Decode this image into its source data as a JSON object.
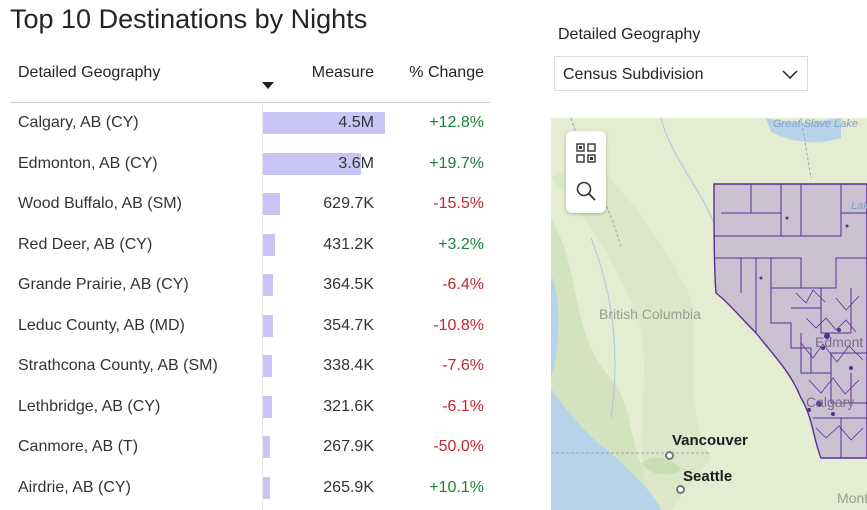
{
  "report": {
    "title": "Top 10 Destinations by Nights"
  },
  "table": {
    "headers": {
      "geography": "Detailed Geography",
      "measure": "Measure",
      "change": "% Change"
    },
    "sort_icon": "sort-descending-icon",
    "rows": [
      {
        "geography": "Calgary, AB (CY)",
        "measure": "4.5M",
        "change": "+12.8%",
        "bar_value": 4.5,
        "direction": "pos"
      },
      {
        "geography": "Edmonton, AB (CY)",
        "measure": "3.6M",
        "change": "+19.7%",
        "bar_value": 3.6,
        "direction": "pos"
      },
      {
        "geography": "Wood Buffalo, AB (SM)",
        "measure": "629.7K",
        "change": "-15.5%",
        "bar_value": 0.6297,
        "direction": "neg"
      },
      {
        "geography": "Red Deer, AB (CY)",
        "measure": "431.2K",
        "change": "+3.2%",
        "bar_value": 0.4312,
        "direction": "pos"
      },
      {
        "geography": "Grande Prairie, AB (CY)",
        "measure": "364.5K",
        "change": "-6.4%",
        "bar_value": 0.3645,
        "direction": "neg"
      },
      {
        "geography": "Leduc County, AB (MD)",
        "measure": "354.7K",
        "change": "-10.8%",
        "bar_value": 0.3547,
        "direction": "neg"
      },
      {
        "geography": "Strathcona County, AB (SM)",
        "measure": "338.4K",
        "change": "-7.6%",
        "bar_value": 0.3384,
        "direction": "neg"
      },
      {
        "geography": "Lethbridge, AB (CY)",
        "measure": "321.6K",
        "change": "-6.1%",
        "bar_value": 0.3216,
        "direction": "neg"
      },
      {
        "geography": "Canmore, AB (T)",
        "measure": "267.9K",
        "change": "-50.0%",
        "bar_value": 0.2679,
        "direction": "neg"
      },
      {
        "geography": "Airdrie, AB (CY)",
        "measure": "265.9K",
        "change": "+10.1%",
        "bar_value": 0.2659,
        "direction": "pos"
      }
    ]
  },
  "slicer": {
    "label": "Detailed Geography",
    "selected": "Census Subdivision",
    "icon": "chevron-down-icon"
  },
  "map": {
    "labels": {
      "great_slave_lake": "Great Slave Lake",
      "lake_partial": "Lak",
      "british_columbia": "British Columbia",
      "edmonton_partial": "Edmont",
      "calgary_partial": "Calgary",
      "montana_partial": "Mont",
      "vancouver": "Vancouver",
      "seattle": "Seattle"
    },
    "tools": [
      "select-region-icon",
      "search-icon"
    ],
    "colors": {
      "land": "#e4ecd2",
      "region_fill": "#c9c1d2",
      "region_stroke": "#5a2d91",
      "water": "#b7d3ea"
    }
  },
  "colors": {
    "bar": "#c9c6f7",
    "positive": "#1a7f37",
    "negative": "#c4262e"
  }
}
